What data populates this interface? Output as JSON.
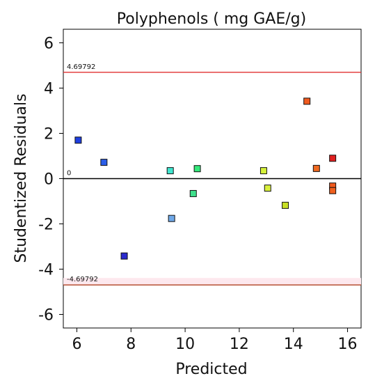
{
  "chart_data": {
    "type": "scatter",
    "title": "Polyphenols ( mg GAE/g)",
    "xlabel": "Predicted",
    "ylabel": "Studentized Residuals",
    "xlim": [
      5.5,
      16.5
    ],
    "ylim": [
      -6.6,
      6.6
    ],
    "x_ticks": [
      6,
      8,
      10,
      12,
      14,
      16
    ],
    "y_ticks": [
      -6,
      -4,
      -2,
      0,
      2,
      4,
      6
    ],
    "reference_lines": [
      {
        "value": 4.69792,
        "label": "4.69792",
        "color": "#e03030"
      },
      {
        "value": 0,
        "label": "0",
        "color": "#000000"
      },
      {
        "value": -4.69792,
        "label": "-4.69792",
        "color": "#b04020"
      }
    ],
    "points": [
      {
        "x": 6.05,
        "y": 1.7,
        "color": "#1f3fe0"
      },
      {
        "x": 7.0,
        "y": 0.72,
        "color": "#2b5ee8"
      },
      {
        "x": 7.75,
        "y": -3.42,
        "color": "#2a2acd"
      },
      {
        "x": 9.45,
        "y": 0.35,
        "color": "#3fe6cf"
      },
      {
        "x": 9.5,
        "y": -1.76,
        "color": "#6fa8e8"
      },
      {
        "x": 10.3,
        "y": -0.66,
        "color": "#3fe08c"
      },
      {
        "x": 10.45,
        "y": 0.44,
        "color": "#34e87a"
      },
      {
        "x": 12.9,
        "y": 0.35,
        "color": "#d6f23a"
      },
      {
        "x": 13.05,
        "y": -0.42,
        "color": "#d9f03c"
      },
      {
        "x": 13.7,
        "y": -1.18,
        "color": "#c8e025"
      },
      {
        "x": 14.5,
        "y": 3.42,
        "color": "#f05a1e"
      },
      {
        "x": 14.85,
        "y": 0.45,
        "color": "#f06a20"
      },
      {
        "x": 15.45,
        "y": 0.9,
        "color": "#e02020"
      },
      {
        "x": 15.45,
        "y": -0.33,
        "color": "#f05a1e"
      },
      {
        "x": 15.45,
        "y": -0.53,
        "color": "#f0601e"
      }
    ]
  }
}
